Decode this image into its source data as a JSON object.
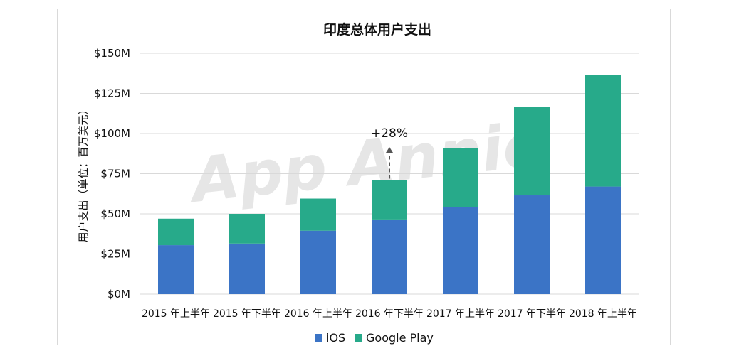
{
  "chart_data": {
    "type": "bar",
    "stacked": true,
    "title": "印度总体用户支出",
    "ylabel": "用户支出（单位：百万美元）",
    "xlabel": "",
    "ylim": [
      0,
      150
    ],
    "yticks": [
      0,
      25,
      50,
      75,
      100,
      125,
      150
    ],
    "ytick_labels": [
      "$0M",
      "$25M",
      "$50M",
      "$75M",
      "$100M",
      "$125M",
      "$150M"
    ],
    "categories": [
      "2015 年上半年",
      "2015 年下半年",
      "2016 年上半年",
      "2016 年下半年",
      "2017 年上半年",
      "2017 年下半年",
      "2018 年上半年"
    ],
    "series": [
      {
        "name": "iOS",
        "color": "#3b74c6",
        "values": [
          30.5,
          31.5,
          39.5,
          46.5,
          54,
          61.5,
          67
        ]
      },
      {
        "name": "Google Play",
        "color": "#27aa8a",
        "values": [
          16.5,
          18.5,
          20,
          24.5,
          37,
          55,
          69.5
        ]
      }
    ],
    "annotation": {
      "text": "+28%",
      "category": "2016 年下半年"
    },
    "grid": true,
    "legend_position": "bottom"
  },
  "watermark": "App Annie"
}
